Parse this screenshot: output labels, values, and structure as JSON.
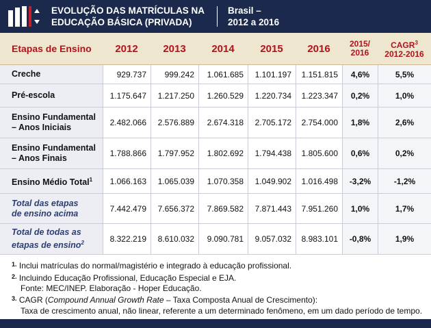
{
  "header": {
    "title_lines": [
      "EVOLUÇÃO DAS MATRÍCULAS NA",
      "EDUCAÇÃO BÁSICA (PRIVADA)"
    ],
    "subtitle_lines": [
      "Brasil –",
      "2012 a 2016"
    ]
  },
  "table": {
    "first_header": "Etapas de Ensino",
    "years": [
      "2012",
      "2013",
      "2014",
      "2015",
      "2016"
    ],
    "change_header": [
      "2015/",
      "2016"
    ],
    "cagr_header": {
      "label": "CAGR",
      "note": "3",
      "period": "2012-2016"
    },
    "rows": [
      {
        "label": [
          "Creche"
        ],
        "values": [
          "929.737",
          "999.242",
          "1.061.685",
          "1.101.197",
          "1.151.815"
        ],
        "change": "4,6%",
        "cagr": "5,5%"
      },
      {
        "label": [
          "Pré-escola"
        ],
        "values": [
          "1.175.647",
          "1.217.250",
          "1.260.529",
          "1.220.734",
          "1.223.347"
        ],
        "change": "0,2%",
        "cagr": "1,0%"
      },
      {
        "label": [
          "Ensino Fundamental",
          "– Anos Iniciais"
        ],
        "values": [
          "2.482.066",
          "2.576.889",
          "2.674.318",
          "2.705.172",
          "2.754.000"
        ],
        "change": "1,8%",
        "cagr": "2,6%"
      },
      {
        "label": [
          "Ensino Fundamental",
          "– Anos Finais"
        ],
        "values": [
          "1.788.866",
          "1.797.952",
          "1.802.692",
          "1.794.438",
          "1.805.600"
        ],
        "change": "0,6%",
        "cagr": "0,2%"
      },
      {
        "label": [
          "Ensino Médio Total"
        ],
        "note": "1",
        "values": [
          "1.066.163",
          "1.065.039",
          "1.070.358",
          "1.049.902",
          "1.016.498"
        ],
        "change": "-3,2%",
        "cagr": "-1,2%"
      },
      {
        "label": [
          "Total das etapas",
          "de ensino acima"
        ],
        "total": true,
        "values": [
          "7.442.479",
          "7.656.372",
          "7.869.582",
          "7.871.443",
          "7.951.260"
        ],
        "change": "1,0%",
        "cagr": "1,7%"
      },
      {
        "label": [
          "Total de todas as",
          "etapas de ensino"
        ],
        "note": "2",
        "total": true,
        "values": [
          "8.322.219",
          "8.610.032",
          "9.090.781",
          "9.057.032",
          "8.983.101"
        ],
        "change": "-0,8%",
        "cagr": "1,9%"
      }
    ]
  },
  "footnotes": [
    {
      "mark": "1",
      "text": "Inclui matrículas do normal/magistério e integrado à educação profissional."
    },
    {
      "mark": "2",
      "text": "Incluindo Educação Profissional, Educação Especial e EJA."
    },
    {
      "text": "Fonte: MEC/INEP. Elaboração - Hoper Educação."
    },
    {
      "mark": "3",
      "text": "CAGR (",
      "italic": "Compound Annual Growth Rate",
      "rest": " – Taxa Composta Anual de Crescimento):"
    },
    {
      "text": "Taxa de crescimento anual, não linear, referente a um determinado fenômeno, em um dado período de tempo."
    }
  ]
}
